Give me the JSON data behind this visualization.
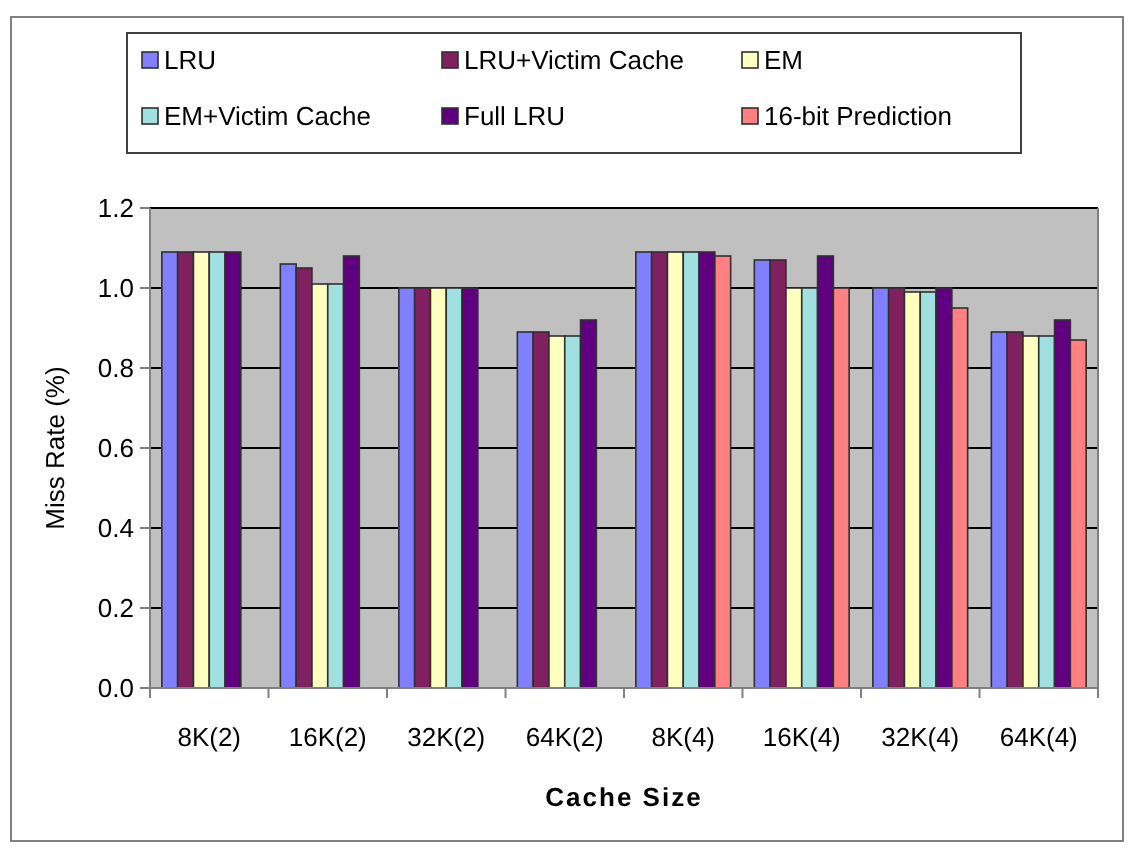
{
  "chart_data": {
    "type": "bar",
    "xlabel": "Cache Size",
    "ylabel": "Miss Rate (%)",
    "categories": [
      "8K(2)",
      "16K(2)",
      "32K(2)",
      "64K(2)",
      "8K(4)",
      "16K(4)",
      "32K(4)",
      "64K(4)"
    ],
    "series": [
      {
        "name": "LRU",
        "color": "#8080ff",
        "values": [
          1.09,
          1.06,
          1.0,
          0.89,
          1.09,
          1.07,
          1.0,
          0.89
        ]
      },
      {
        "name": "LRU+Victim Cache",
        "color": "#802060",
        "values": [
          1.09,
          1.05,
          1.0,
          0.89,
          1.09,
          1.07,
          1.0,
          0.89
        ]
      },
      {
        "name": "EM",
        "color": "#ffffc0",
        "values": [
          1.09,
          1.01,
          1.0,
          0.88,
          1.09,
          1.0,
          0.99,
          0.88
        ]
      },
      {
        "name": "EM+Victim Cache",
        "color": "#a0e0e0",
        "values": [
          1.09,
          1.01,
          1.0,
          0.88,
          1.09,
          1.0,
          0.99,
          0.88
        ]
      },
      {
        "name": "Full LRU",
        "color": "#600080",
        "values": [
          1.09,
          1.08,
          1.0,
          0.92,
          1.09,
          1.08,
          1.0,
          0.92
        ]
      },
      {
        "name": "16-bit Prediction",
        "color": "#ff8080",
        "values": [
          null,
          null,
          null,
          null,
          1.08,
          1.0,
          0.95,
          0.87
        ]
      }
    ],
    "ylim": [
      0,
      1.2
    ],
    "yticks": [
      {
        "value": 0,
        "label": "0.0"
      },
      {
        "value": 0.2,
        "label": "0.2"
      },
      {
        "value": 0.4,
        "label": "0.4"
      },
      {
        "value": 0.6,
        "label": "0.6"
      },
      {
        "value": 0.8,
        "label": "0.8"
      },
      {
        "value": 1,
        "label": "1.0"
      },
      {
        "value": 1.2,
        "label": "1.2"
      }
    ],
    "grid": "y",
    "legend": "top"
  }
}
